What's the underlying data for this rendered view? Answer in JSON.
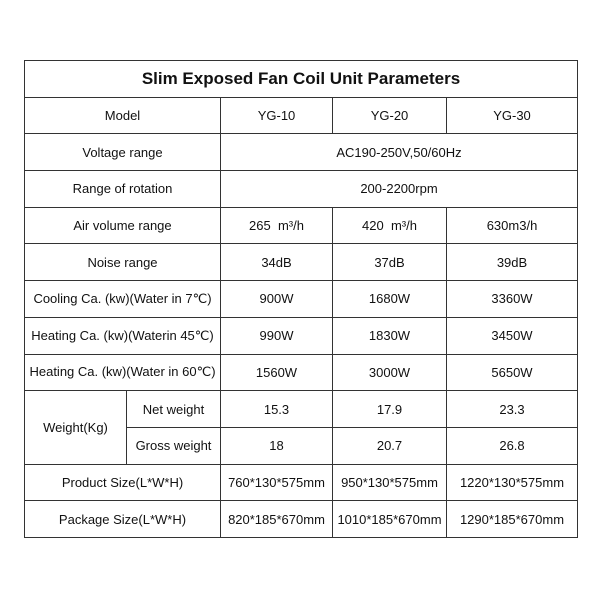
{
  "header": {
    "title": "Slim Exposed Fan Coil Unit Parameters"
  },
  "table": {
    "columns": [
      "Model",
      "YG-10",
      "YG-20",
      "YG-30"
    ],
    "rows": [
      [
        "Voltage range",
        "AC190-250V,50/60Hz"
      ],
      [
        "Range of rotation",
        "200-2200rpm"
      ],
      [
        "Air volume range",
        "265  m³/h",
        "420  m³/h",
        "630m3/h"
      ],
      [
        "Noise range",
        "34dB",
        "37dB",
        "39dB"
      ],
      [
        "Cooling Ca. (kw)(Water in 7℃)",
        "900W",
        "1680W",
        "3360W"
      ],
      [
        "Heating Ca. (kw)(Waterin 45℃)",
        "990W",
        "1830W",
        "3450W"
      ],
      [
        "Heating Ca. (kw)(Water in 60℃)",
        "1560W",
        "3000W",
        "5650W"
      ],
      [
        "Product Size(L*W*H)",
        "760*130*575mm",
        "950*130*575mm",
        "1220*130*575mm"
      ],
      [
        "Package Size(L*W*H)",
        "820*185*670mm",
        "1010*185*670mm",
        "1290*185*670mm"
      ]
    ],
    "weight": {
      "label": "Weight(Kg)",
      "rows": [
        [
          "Net weight",
          "15.3",
          "17.9",
          "23.3"
        ],
        [
          "Gross weight",
          "18",
          "20.7",
          "26.8"
        ]
      ]
    }
  }
}
